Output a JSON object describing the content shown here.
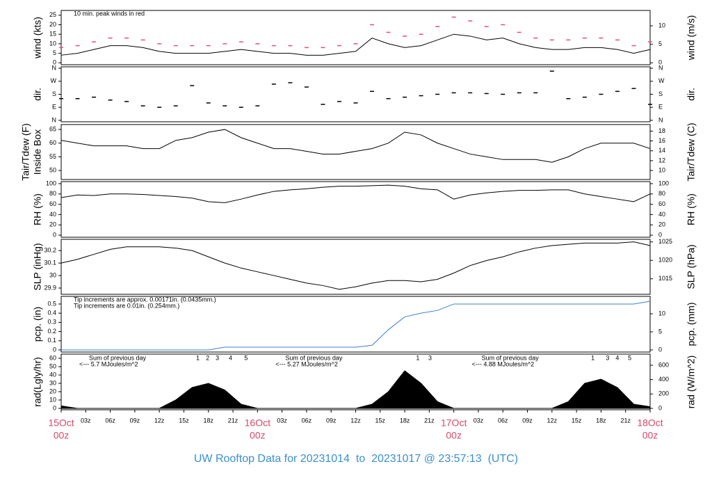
{
  "chart_data": [
    {
      "type": "line",
      "ylabel": "wind (kts)",
      "y2label": "wind (m/s)",
      "annotations": [
        {
          "text": "10 min. peak winds in red",
          "color": "#e0507a"
        }
      ],
      "xlim": [
        0,
        72
      ],
      "ylim": [
        -1,
        27.5
      ],
      "yticks": [
        0,
        5,
        10,
        15,
        20,
        25
      ],
      "y2lim": [
        -0.51,
        14.15
      ],
      "y2ticks": [
        0,
        5,
        10
      ],
      "x": [
        0,
        2,
        4,
        6,
        8,
        10,
        12,
        14,
        16,
        18,
        20,
        22,
        24,
        26,
        28,
        30,
        32,
        34,
        36,
        38,
        40,
        42,
        44,
        46,
        48,
        50,
        52,
        54,
        56,
        58,
        60,
        62,
        64,
        66,
        68,
        70,
        72
      ],
      "series": [
        {
          "style": "line",
          "color": "#000000",
          "values": [
            4,
            5,
            7,
            9,
            9,
            8,
            6,
            5,
            5,
            5,
            6,
            7,
            6,
            5,
            5,
            4,
            4,
            5,
            6,
            13,
            10,
            8,
            9,
            12,
            15,
            14,
            12,
            13,
            10,
            8,
            7,
            7,
            8,
            8,
            7,
            5,
            7
          ]
        },
        {
          "style": "dash",
          "color": "#e0507a",
          "values": [
            8,
            9,
            11,
            13,
            13,
            12,
            10,
            9,
            9,
            9,
            10,
            11,
            10,
            9,
            9,
            8,
            8,
            9,
            10,
            20,
            16,
            14,
            15,
            19,
            24,
            22,
            19,
            20,
            16,
            13,
            12,
            12,
            13,
            13,
            12,
            9,
            11
          ]
        }
      ]
    },
    {
      "type": "scatter",
      "ylabel": "dir.",
      "y2label": "dir.",
      "xlim": [
        0,
        72
      ],
      "ylim": [
        -10,
        370
      ],
      "yticks": [
        {
          "value": 0,
          "label": "N"
        },
        {
          "value": 90,
          "label": "E"
        },
        {
          "value": 180,
          "label": "S"
        },
        {
          "value": 270,
          "label": "W"
        },
        {
          "value": 360,
          "label": "N"
        }
      ],
      "y2lim": [
        -10,
        370
      ],
      "y2ticks": [
        {
          "value": 0,
          "label": "N"
        },
        {
          "value": 90,
          "label": "E"
        },
        {
          "value": 180,
          "label": "S"
        },
        {
          "value": 270,
          "label": "W"
        },
        {
          "value": 360,
          "label": "N"
        }
      ],
      "x": [
        0,
        2,
        4,
        6,
        8,
        10,
        12,
        14,
        16,
        18,
        20,
        22,
        24,
        26,
        28,
        30,
        32,
        34,
        36,
        38,
        40,
        42,
        44,
        46,
        48,
        50,
        52,
        54,
        56,
        58,
        60,
        62,
        64,
        66,
        68,
        70,
        72
      ],
      "series": [
        {
          "style": "dash",
          "color": "#000000",
          "values": [
            150,
            150,
            160,
            140,
            130,
            100,
            90,
            100,
            240,
            120,
            100,
            90,
            100,
            250,
            260,
            230,
            110,
            130,
            120,
            200,
            150,
            160,
            170,
            180,
            190,
            190,
            185,
            180,
            190,
            190,
            340,
            150,
            160,
            180,
            200,
            220,
            110
          ]
        }
      ]
    },
    {
      "type": "line",
      "ylabel": [
        "Tair/Tdew (F)",
        "Inside Box"
      ],
      "y2label": "Tair/Tdew (C)",
      "xlim": [
        0,
        72
      ],
      "ylim": [
        46.7,
        66.8
      ],
      "yticks": [
        50,
        55,
        60,
        65
      ],
      "y2lim": [
        8.17,
        19.33
      ],
      "y2ticks": [
        10,
        12,
        14,
        16,
        18
      ],
      "x": [
        0,
        2,
        4,
        6,
        8,
        10,
        12,
        14,
        16,
        18,
        20,
        22,
        24,
        26,
        28,
        30,
        32,
        34,
        36,
        38,
        40,
        42,
        44,
        46,
        48,
        50,
        52,
        54,
        56,
        58,
        60,
        62,
        64,
        66,
        68,
        70,
        72
      ],
      "series": [
        {
          "style": "line",
          "color": "#000000",
          "values": [
            61,
            60,
            59,
            59,
            59,
            58,
            58,
            61,
            62,
            64,
            65,
            62,
            60,
            58,
            58,
            57,
            56,
            56,
            57,
            58,
            60,
            64,
            63,
            60,
            58,
            56,
            55,
            54,
            54,
            54,
            53,
            55,
            58,
            60,
            60,
            60,
            58
          ]
        }
      ]
    },
    {
      "type": "line",
      "ylabel": "RH (%)",
      "y2label": "RH (%)",
      "xlim": [
        0,
        72
      ],
      "ylim": [
        -4,
        104
      ],
      "yticks": [
        0,
        20,
        40,
        60,
        80,
        100
      ],
      "y2lim": [
        -4,
        104
      ],
      "y2ticks": [
        0,
        20,
        40,
        60,
        80,
        100
      ],
      "x": [
        0,
        2,
        4,
        6,
        8,
        10,
        12,
        14,
        16,
        18,
        20,
        22,
        24,
        26,
        28,
        30,
        32,
        34,
        36,
        38,
        40,
        42,
        44,
        46,
        48,
        50,
        52,
        54,
        56,
        58,
        60,
        62,
        64,
        66,
        68,
        70,
        72
      ],
      "series": [
        {
          "style": "line",
          "color": "#000000",
          "values": [
            73,
            78,
            77,
            80,
            80,
            79,
            77,
            75,
            72,
            65,
            63,
            70,
            78,
            85,
            88,
            90,
            93,
            95,
            95,
            96,
            97,
            95,
            90,
            88,
            70,
            78,
            82,
            85,
            87,
            87,
            88,
            88,
            80,
            75,
            70,
            65,
            80
          ]
        }
      ]
    },
    {
      "type": "line",
      "ylabel": "SLP (inHg)",
      "y2label": "SLP (hPa)",
      "xlim": [
        0,
        72
      ],
      "ylim": [
        29.85,
        30.29
      ],
      "yticks": [
        29.9,
        30,
        30.1,
        30.2
      ],
      "y2lim": [
        1010.8,
        1025.7
      ],
      "y2ticks": [
        1015,
        1020,
        1025
      ],
      "x": [
        0,
        2,
        4,
        6,
        8,
        10,
        12,
        14,
        16,
        18,
        20,
        22,
        24,
        26,
        28,
        30,
        32,
        34,
        36,
        38,
        40,
        42,
        44,
        46,
        48,
        50,
        52,
        54,
        56,
        58,
        60,
        62,
        64,
        66,
        68,
        70,
        72
      ],
      "series": [
        {
          "style": "line",
          "color": "#000000",
          "values": [
            30.1,
            30.13,
            30.17,
            30.21,
            30.23,
            30.23,
            30.23,
            30.22,
            30.2,
            30.15,
            30.1,
            30.06,
            30.03,
            30.0,
            29.97,
            29.94,
            29.92,
            29.89,
            29.91,
            29.94,
            29.96,
            29.96,
            29.95,
            29.97,
            30.02,
            30.08,
            30.12,
            30.15,
            30.19,
            30.22,
            30.24,
            30.25,
            30.26,
            30.26,
            30.26,
            30.27,
            30.24
          ]
        }
      ]
    },
    {
      "type": "line",
      "ylabel": "pcp. (in)",
      "y2label": "pcp. (mm)",
      "annotations": [
        {
          "text": "Tip increments are approx. 0.00171in. (0.0435mm.)",
          "color": "#e0507a"
        },
        {
          "text": "Tip increments are 0.01in. (0.254mm.)",
          "color": "#3a7fd0"
        }
      ],
      "xlim": [
        0,
        72
      ],
      "ylim": [
        -0.023,
        0.583
      ],
      "yticks": [
        0,
        0.1,
        0.2,
        0.3,
        0.4,
        0.5
      ],
      "y2lim": [
        -0.58,
        14.81
      ],
      "y2ticks": [
        0,
        5,
        10
      ],
      "x": [
        0,
        2,
        4,
        6,
        8,
        10,
        12,
        14,
        16,
        18,
        20,
        22,
        24,
        26,
        28,
        30,
        32,
        34,
        36,
        38,
        40,
        42,
        44,
        46,
        48,
        50,
        52,
        54,
        56,
        58,
        60,
        62,
        64,
        66,
        68,
        70,
        72
      ],
      "series": [
        {
          "style": "line",
          "color": "#3a7fd0",
          "values": [
            0,
            0,
            0,
            0,
            0,
            0,
            0,
            0,
            0,
            0,
            0.03,
            0.03,
            0.03,
            0.03,
            0.03,
            0.03,
            0.03,
            0.03,
            0.03,
            0.05,
            0.22,
            0.36,
            0.4,
            0.43,
            0.5,
            0.5,
            0.5,
            0.5,
            0.5,
            0.5,
            0.5,
            0.5,
            0.5,
            0.5,
            0.5,
            0.5,
            0.53
          ]
        }
      ]
    },
    {
      "type": "area",
      "ylabel": "rad(Lgly/hr)",
      "y2label": "rad (W/m^2)",
      "notes": [
        {
          "title": "Sum of previous day",
          "text": "<--- 5.7 MJoules/m^2"
        },
        {
          "title": "Sum of previous day",
          "text": "<--- 5.27 MJoules/m^2"
        },
        {
          "title": "Sum of previous day",
          "text": "<--- 4.88 MJoules/m^2"
        }
      ],
      "markers": [
        {
          "x": 16.7,
          "label": "1"
        },
        {
          "x": 17.9,
          "label": "2"
        },
        {
          "x": 19.1,
          "label": "3"
        },
        {
          "x": 20.7,
          "label": "4"
        },
        {
          "x": 22.6,
          "label": "5"
        },
        {
          "x": 43.6,
          "label": "1"
        },
        {
          "x": 45.1,
          "label": "3"
        },
        {
          "x": 65,
          "label": "1"
        },
        {
          "x": 66.8,
          "label": "3"
        },
        {
          "x": 68,
          "label": "4"
        },
        {
          "x": 69.5,
          "label": "5"
        }
      ],
      "xlim": [
        0,
        72
      ],
      "ylim": [
        -1.7,
        65
      ],
      "yticks": [
        0,
        10,
        20,
        30,
        40,
        50,
        60
      ],
      "y2lim": [
        -19.8,
        755
      ],
      "y2ticks": [
        0,
        200,
        400,
        600
      ],
      "xticks": [
        {
          "value": 0,
          "label": "00z"
        },
        {
          "value": 3,
          "label": "03z"
        },
        {
          "value": 6,
          "label": "06z"
        },
        {
          "value": 9,
          "label": "09z"
        },
        {
          "value": 12,
          "label": "12z"
        },
        {
          "value": 15,
          "label": "15z"
        },
        {
          "value": 18,
          "label": "18z"
        },
        {
          "value": 21,
          "label": "21z"
        },
        {
          "value": 24,
          "label": "00z"
        },
        {
          "value": 27,
          "label": "03z"
        },
        {
          "value": 30,
          "label": "06z"
        },
        {
          "value": 33,
          "label": "09z"
        },
        {
          "value": 36,
          "label": "12z"
        },
        {
          "value": 39,
          "label": "15z"
        },
        {
          "value": 42,
          "label": "18z"
        },
        {
          "value": 45,
          "label": "21z"
        },
        {
          "value": 48,
          "label": "00z"
        },
        {
          "value": 51,
          "label": "03z"
        },
        {
          "value": 54,
          "label": "06z"
        },
        {
          "value": 57,
          "label": "09z"
        },
        {
          "value": 60,
          "label": "12z"
        },
        {
          "value": 63,
          "label": "15z"
        },
        {
          "value": 66,
          "label": "18z"
        },
        {
          "value": 69,
          "label": "21z"
        },
        {
          "value": 72,
          "label": "00z"
        }
      ],
      "date_labels": [
        {
          "value": 0,
          "label": "15Oct"
        },
        {
          "value": 24,
          "label": "16Oct"
        },
        {
          "value": 48,
          "label": "17Oct"
        },
        {
          "value": 72,
          "label": "18Oct"
        }
      ],
      "x": [
        0,
        2,
        4,
        6,
        8,
        10,
        12,
        14,
        16,
        18,
        20,
        22,
        24,
        26,
        28,
        30,
        32,
        34,
        36,
        38,
        40,
        42,
        44,
        46,
        48,
        50,
        52,
        54,
        56,
        58,
        60,
        62,
        64,
        66,
        68,
        70,
        72
      ],
      "series": [
        {
          "style": "area",
          "color": "#000000",
          "values": [
            3,
            0,
            0,
            0,
            0,
            0,
            0,
            10,
            25,
            30,
            22,
            5,
            0,
            0,
            0,
            0,
            0,
            0,
            0,
            5,
            20,
            45,
            30,
            8,
            0,
            0,
            0,
            0,
            0,
            0,
            0,
            8,
            30,
            35,
            25,
            5,
            2
          ]
        }
      ]
    }
  ],
  "footer": {
    "title": "UW Rooftop Data for 20231014  to  20231017 @ 23:57:13  (UTC)"
  }
}
